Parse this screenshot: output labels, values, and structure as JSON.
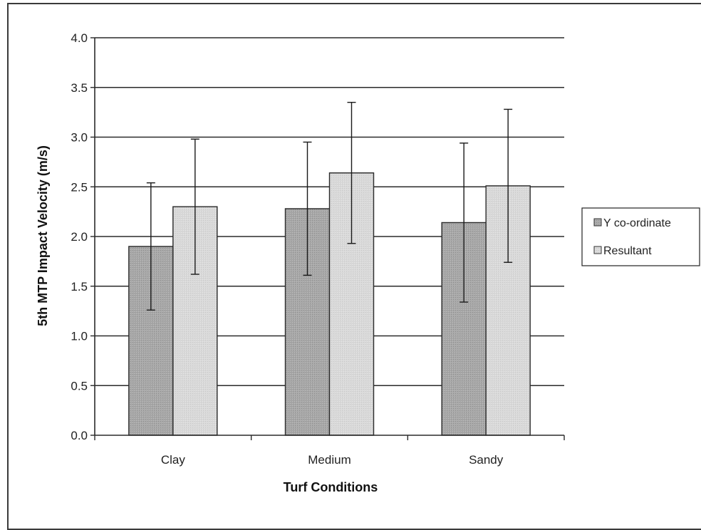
{
  "chart_data": {
    "type": "bar",
    "title": "",
    "xlabel": "Turf Conditions",
    "ylabel": "5th MTP Impact Velocity (m/s)",
    "categories": [
      "Clay",
      "Medium",
      "Sandy"
    ],
    "ylim": [
      0,
      4.0
    ],
    "yticks": [
      "0.0",
      "0.5",
      "1.0",
      "1.5",
      "2.0",
      "2.5",
      "3.0",
      "3.5",
      "4.0"
    ],
    "grid": true,
    "legend_position": "right",
    "series": [
      {
        "name": "Y co-ordinate",
        "values": [
          1.9,
          2.28,
          2.14
        ],
        "error": [
          0.64,
          0.67,
          0.8
        ],
        "color": "#a8a8a8"
      },
      {
        "name": "Resultant",
        "values": [
          2.3,
          2.64,
          2.51
        ],
        "error": [
          0.68,
          0.71,
          0.77
        ],
        "color": "#d9d9d9"
      }
    ]
  }
}
